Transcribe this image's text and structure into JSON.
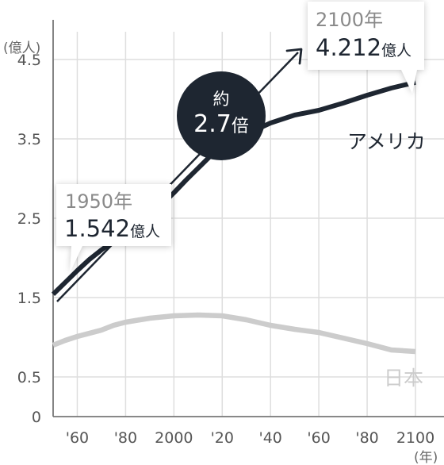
{
  "chart_data": {
    "type": "line",
    "y_unit": "(億人)",
    "x_unit": "(年)",
    "ylim": [
      0,
      5
    ],
    "xlim": [
      1950,
      2100
    ],
    "yticks": [
      {
        "value": 0,
        "label": "0"
      },
      {
        "value": 0.5,
        "label": "0.5"
      },
      {
        "value": 1.5,
        "label": "1.5"
      },
      {
        "value": 2.5,
        "label": "2.5"
      },
      {
        "value": 3.5,
        "label": "3.5"
      },
      {
        "value": 4.5,
        "label": "4.5"
      }
    ],
    "xticks": [
      {
        "value": 1960,
        "label": "'60"
      },
      {
        "value": 1980,
        "label": "'80"
      },
      {
        "value": 2000,
        "label": "2000"
      },
      {
        "value": 2020,
        "label": "'20"
      },
      {
        "value": 2040,
        "label": "'40"
      },
      {
        "value": 2060,
        "label": "'60"
      },
      {
        "value": 2080,
        "label": "'80"
      },
      {
        "value": 2100,
        "label": "2100"
      }
    ],
    "grid": true,
    "series": [
      {
        "name": "アメリカ",
        "color": "#1e2631",
        "x": [
          1950,
          1955,
          1960,
          1965,
          1970,
          1975,
          1980,
          1985,
          1990,
          1995,
          2000,
          2005,
          2010,
          2015,
          2020,
          2025,
          2030,
          2040,
          2050,
          2060,
          2070,
          2080,
          2090,
          2100
        ],
        "values": [
          1.542,
          1.69,
          1.84,
          1.98,
          2.1,
          2.21,
          2.3,
          2.41,
          2.53,
          2.67,
          2.82,
          2.98,
          3.13,
          3.28,
          3.36,
          3.46,
          3.56,
          3.7,
          3.8,
          3.86,
          3.95,
          4.05,
          4.14,
          4.212
        ]
      },
      {
        "name": "日本",
        "color": "#cccccc",
        "x": [
          1950,
          1955,
          1960,
          1970,
          1975,
          1980,
          1990,
          2000,
          2010,
          2020,
          2030,
          2040,
          2050,
          2060,
          2070,
          2080,
          2090,
          2100
        ],
        "values": [
          0.9,
          0.96,
          1.01,
          1.09,
          1.15,
          1.19,
          1.24,
          1.27,
          1.28,
          1.27,
          1.22,
          1.15,
          1.1,
          1.06,
          0.99,
          0.92,
          0.84,
          0.82
        ]
      }
    ],
    "annotations": {
      "start": {
        "year": "1950年",
        "value": "1.542",
        "unit": "億人"
      },
      "end": {
        "year": "2100年",
        "value": "4.212",
        "unit": "億人"
      },
      "ratio": {
        "top": "約",
        "value": "2.7",
        "unit": "倍"
      }
    }
  },
  "colors": {
    "usa": "#1e2631",
    "japan": "#cccccc",
    "badge": "#1e2631",
    "grid": "#dedede"
  }
}
